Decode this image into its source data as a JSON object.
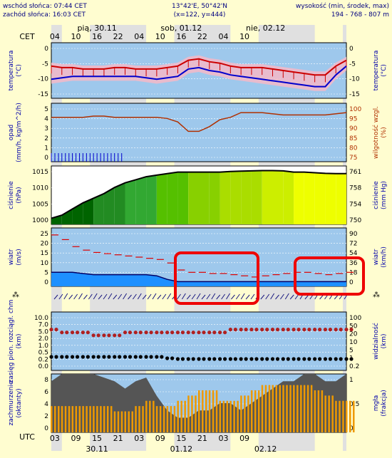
{
  "header": {
    "sunrise": "wschód słońca: 07:44 CET",
    "sunset": "zachód słońca: 16:03 CET",
    "coords": "13°42'E, 50°42'N",
    "grid": "(x=122, y=444)",
    "height_label": "wysokość (min, środek, max)",
    "height_values": "194 - 768 - 807 m"
  },
  "top_axis": {
    "tz": "CET",
    "days": [
      "pią, 30.11",
      "sob, 01.12",
      "nie, 02.12"
    ],
    "hours": [
      "04",
      "10",
      "16",
      "22",
      "04",
      "10",
      "16",
      "22",
      "04",
      "10"
    ]
  },
  "bottom_axis": {
    "tz": "UTC",
    "hours": [
      "03",
      "09",
      "15",
      "21",
      "03",
      "09",
      "15",
      "21",
      "03",
      "09"
    ],
    "dates": [
      "30.11",
      "01.12",
      "02.12"
    ]
  },
  "colors": {
    "background": "#fffdd0",
    "plot_blue": "#9ec8ec",
    "night_blue": "#7fb0dc",
    "temp_max": "#cc0000",
    "temp_mean": "#0000cc",
    "humidity": "#b03000",
    "pressure_line": "#000000",
    "wind_gust": "#dd0000",
    "highlight_box": "#ee0000",
    "cloud_gray": "#555555",
    "fog_orange": "#ee9900"
  },
  "chart_data": [
    {
      "type": "line",
      "name": "temperature",
      "left_label": [
        "temperatura",
        "(°C)"
      ],
      "right_label": [
        "temperatura",
        "(°C)"
      ],
      "ylim": [
        -17,
        2
      ],
      "left_ticks": [
        "0",
        "-5",
        "-10",
        "-15"
      ],
      "right_ticks": [
        "0",
        "-5",
        "-10",
        "-15"
      ],
      "x": [
        0,
        3,
        6,
        9,
        12,
        15,
        18,
        21,
        24,
        27,
        30,
        33,
        36,
        39,
        42,
        45,
        48,
        51,
        54,
        57,
        60,
        63,
        66,
        69,
        72,
        75,
        78,
        81,
        84
      ],
      "series": [
        {
          "values": [
            -6,
            -6.5,
            -6.5,
            -7,
            -7,
            -7,
            -6.5,
            -6.5,
            -7,
            -7,
            -7,
            -6.5,
            -6,
            -4,
            -3.5,
            -4.5,
            -5,
            -6,
            -6.5,
            -6.5,
            -6.5,
            -7,
            -7.5,
            -8,
            -8.5,
            -9,
            -9,
            -6,
            -4
          ]
        },
        {
          "values": [
            -10.5,
            -10,
            -9.5,
            -9.5,
            -9.5,
            -9.5,
            -9.5,
            -9.5,
            -9.5,
            -10,
            -10.5,
            -10,
            -9.5,
            -7,
            -6.5,
            -7.5,
            -8,
            -9,
            -9.5,
            -10,
            -10.5,
            -11,
            -11.5,
            -12,
            -12.5,
            -13,
            -13,
            -9,
            -6
          ]
        }
      ]
    },
    {
      "type": "line",
      "name": "precipitation_humidity",
      "left_label": [
        "opad",
        "(mm/h, kg/m^2/h)"
      ],
      "right_label": [
        "wilgotność wzgl.",
        "(%)"
      ],
      "left_ticks": [
        "5",
        "4",
        "3",
        "2",
        "1",
        "0"
      ],
      "right_ticks": [
        "100",
        "95",
        "90",
        "85",
        "80",
        "75"
      ],
      "ylim": [
        75,
        100
      ],
      "x": [
        0,
        3,
        6,
        9,
        12,
        15,
        18,
        21,
        24,
        27,
        30,
        33,
        36,
        39,
        42,
        45,
        48,
        51,
        54,
        57,
        60,
        63,
        66,
        69,
        72,
        75,
        78,
        81,
        84
      ],
      "series": [
        {
          "values": [
            94,
            94,
            94,
            94,
            94.5,
            94.5,
            94,
            94,
            94,
            94,
            94,
            93.5,
            92,
            88,
            88,
            90,
            93,
            94,
            96,
            96,
            96,
            95.5,
            95,
            95,
            95,
            95,
            95,
            95.5,
            96
          ]
        },
        {
          "values": [
            0.4,
            0.4,
            0.4,
            0.4,
            0.4,
            0.3,
            0.1,
            0,
            0,
            0,
            0,
            0,
            0,
            0,
            0,
            0,
            0,
            0,
            0,
            0,
            0,
            0,
            0,
            0,
            0,
            0,
            0,
            0,
            0
          ]
        }
      ]
    },
    {
      "type": "area",
      "name": "pressure",
      "left_label": [
        "ciśnienie",
        "(hPa)"
      ],
      "right_label": [
        "ciśnienie",
        "(mm Hg)"
      ],
      "left_ticks": [
        "1015",
        "1010",
        "1005",
        "1000"
      ],
      "right_ticks": [
        "761",
        "758",
        "754",
        "750"
      ],
      "ylim": [
        998,
        1017
      ],
      "x": [
        0,
        3,
        6,
        9,
        12,
        15,
        18,
        21,
        24,
        27,
        30,
        33,
        36,
        39,
        42,
        45,
        48,
        51,
        54,
        57,
        60,
        63,
        66,
        69,
        72,
        75,
        78,
        81,
        84
      ],
      "series": [
        {
          "values": [
            1000,
            1001,
            1003,
            1005,
            1006.5,
            1008,
            1010,
            1011.5,
            1012.5,
            1013.5,
            1014,
            1014.5,
            1015,
            1015,
            1015,
            1015,
            1015,
            1015.2,
            1015.3,
            1015.4,
            1015.5,
            1015.5,
            1015.4,
            1015,
            1015,
            1014.8,
            1014.6,
            1014.5,
            1014.5
          ]
        }
      ]
    },
    {
      "type": "line",
      "name": "wind",
      "left_label": [
        "wiatr",
        "(m/s)"
      ],
      "right_label": [
        "wiatr",
        "(km/h)"
      ],
      "left_ticks": [
        "25",
        "20",
        "15",
        "10",
        "5",
        "0"
      ],
      "right_ticks": [
        "90",
        "72",
        "54",
        "36",
        "18",
        "0"
      ],
      "ylim": [
        0,
        25
      ],
      "x": [
        0,
        3,
        6,
        9,
        12,
        15,
        18,
        21,
        24,
        27,
        30,
        33,
        36,
        39,
        42,
        45,
        48,
        51,
        54,
        57,
        60,
        63,
        66,
        69,
        72,
        75,
        78,
        81,
        84
      ],
      "series": [
        {
          "values": [
            22,
            20,
            17,
            15.5,
            14.5,
            14,
            13.5,
            13,
            12.5,
            12,
            11.5,
            10,
            7,
            6,
            6,
            5.5,
            5.5,
            5,
            4.5,
            4,
            4.5,
            5,
            5.5,
            6,
            6,
            5.5,
            5,
            5.5,
            6
          ]
        },
        {
          "values": [
            6,
            6,
            6,
            5.5,
            5,
            5,
            5,
            5,
            5,
            5,
            4.5,
            3,
            2,
            2,
            2,
            2,
            2,
            2,
            2,
            2,
            2,
            2,
            2,
            2,
            2,
            2,
            2,
            2,
            2
          ]
        }
      ]
    },
    {
      "type": "line",
      "name": "visibility",
      "left_label": [
        "zasięg pion. rozciągł. chm",
        "(km)"
      ],
      "right_label": [
        "widzialność",
        "(km)"
      ],
      "left_ticks": [
        "10.0",
        "7.0",
        "5.0",
        "2.0",
        "1.0",
        "0.5",
        "0.2",
        "0.0"
      ],
      "right_ticks": [
        "100",
        "50",
        "20",
        "10",
        "5",
        "1",
        "0.2"
      ],
      "ylim": [
        0,
        10
      ],
      "x": [
        0,
        3,
        6,
        9,
        12,
        15,
        18,
        21,
        24,
        27,
        30,
        33,
        36,
        39,
        42,
        45,
        48,
        51,
        54,
        57,
        60,
        63,
        66,
        69,
        72,
        75,
        78,
        81,
        84
      ],
      "series": [
        {
          "values": [
            7,
            6.5,
            6.5,
            6.5,
            6,
            6,
            6,
            6.5,
            6.5,
            6.5,
            6.5,
            6.5,
            6.5,
            6.5,
            6.5,
            6.5,
            6.5,
            7,
            7,
            7,
            7,
            7,
            7,
            7,
            7,
            7,
            7,
            7,
            7
          ]
        },
        {
          "values": [
            0.5,
            0.5,
            0.5,
            0.5,
            0.5,
            0.5,
            0.5,
            0.5,
            0.5,
            0.5,
            0.5,
            0.3,
            0.2,
            0.2,
            0.2,
            0.2,
            0.2,
            0.2,
            0.2,
            0.2,
            0.2,
            0.2,
            0.2,
            0.2,
            0.2,
            0.2,
            0.2,
            0.2,
            0.2
          ]
        }
      ]
    },
    {
      "type": "bar",
      "name": "clouds",
      "left_label": [
        "zachmurzenie",
        "(oktanty)"
      ],
      "right_label": [
        "mgła",
        "(frakcja)"
      ],
      "left_ticks": [
        "8",
        "6",
        "4",
        "2",
        "0"
      ],
      "right_ticks": [
        "1",
        "0.5",
        "0"
      ],
      "ylim": [
        0,
        8
      ],
      "x": [
        0,
        3,
        6,
        9,
        12,
        15,
        18,
        21,
        24,
        27,
        30,
        33,
        36,
        39,
        42,
        45,
        48,
        51,
        54,
        57,
        60,
        63,
        66,
        69,
        72,
        75,
        78,
        81,
        84
      ],
      "series": [
        {
          "values": [
            7,
            8,
            8,
            8,
            8,
            7.5,
            7,
            6,
            7,
            7.5,
            5,
            3,
            2,
            2,
            3,
            3,
            4,
            4,
            3,
            4,
            5,
            6,
            7,
            7,
            8,
            8,
            7,
            7,
            8
          ]
        },
        {
          "values": [
            0.5,
            0.5,
            0.5,
            0.5,
            0.5,
            0.5,
            0.4,
            0.4,
            0.5,
            0.6,
            0.5,
            0.5,
            0.6,
            0.7,
            0.8,
            0.8,
            0.6,
            0.6,
            0.7,
            0.8,
            0.9,
            0.9,
            0.9,
            0.9,
            0.9,
            0.8,
            0.7,
            0.6,
            0.6
          ]
        }
      ]
    }
  ]
}
